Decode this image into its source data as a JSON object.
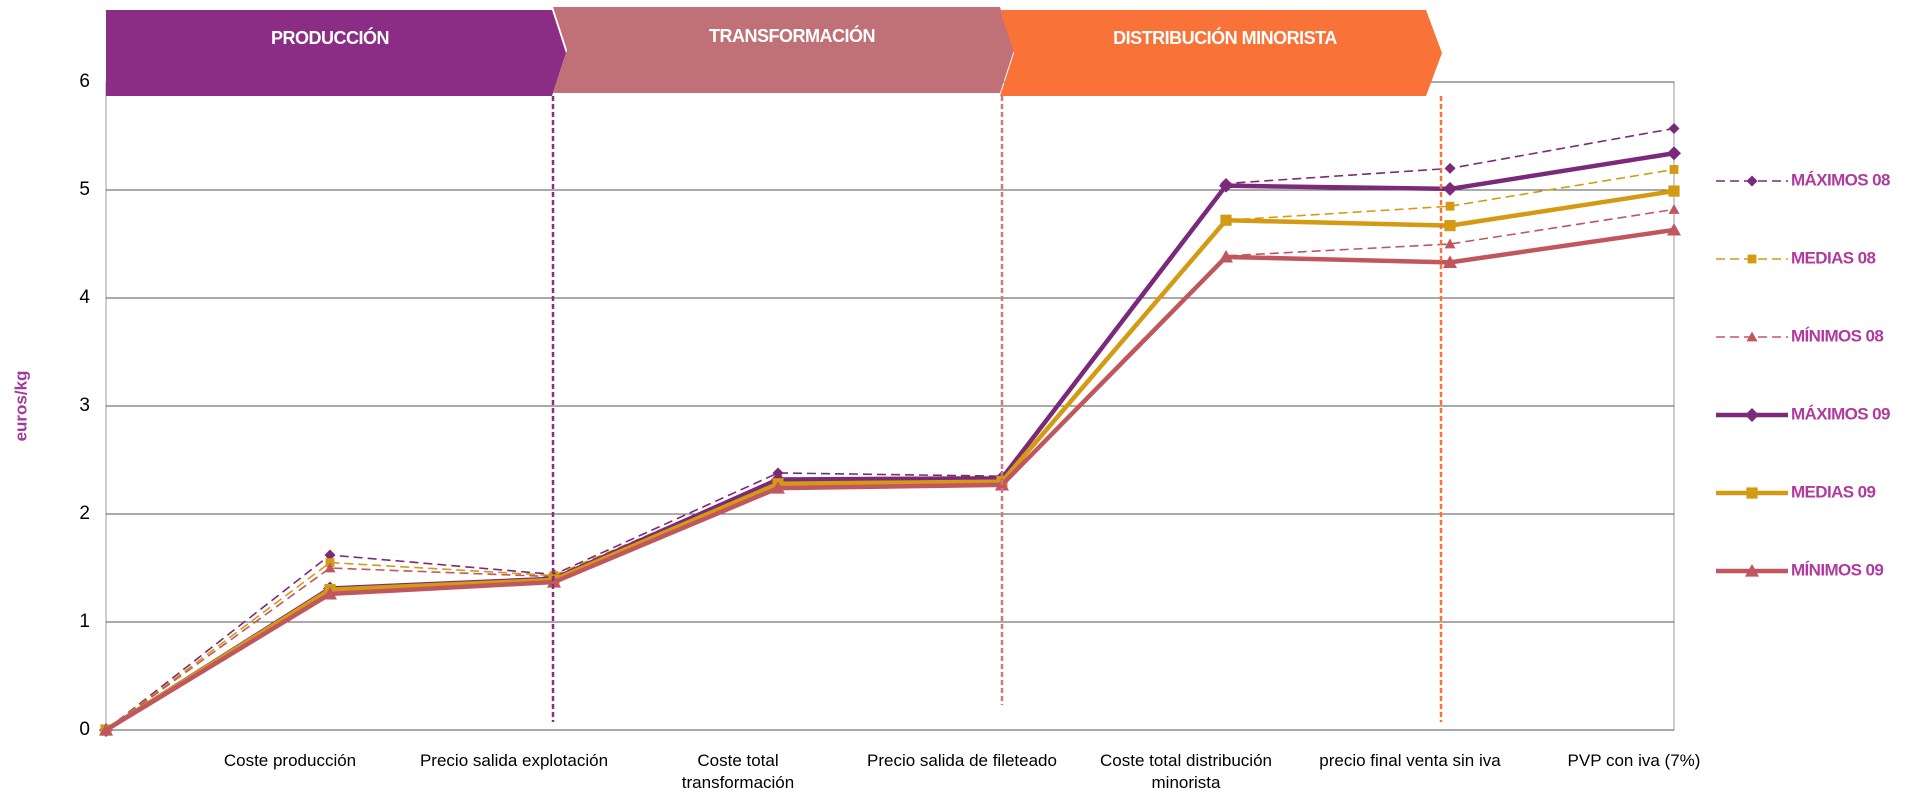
{
  "chart_data": {
    "type": "line",
    "y_label": "euros/kg",
    "stages": [
      "PRODUCCIÓN",
      "TRANSFORMACIÓN",
      "DISTRIBUCIÓN MINORISTA"
    ],
    "categories": [
      null,
      "Coste producción",
      "Precio salida explotación",
      "Coste total\ntransformación",
      "Precio salida de fileteado",
      "Coste total distribución\nminorista",
      "precio final venta sin iva",
      "PVP con iva (7%)"
    ],
    "ylim": [
      0,
      6
    ],
    "yticks": [
      0,
      1,
      2,
      3,
      4,
      5,
      6
    ],
    "grid": true,
    "series": [
      {
        "name": "MÁXIMOS 08",
        "color": "#7b2a7a",
        "marker": "diamond",
        "dashed": true,
        "values": [
          0,
          1.62,
          1.44,
          2.38,
          2.35,
          5.06,
          5.2,
          5.57
        ]
      },
      {
        "name": "MEDIAS  08",
        "color": "#d39a12",
        "marker": "square",
        "dashed": true,
        "values": [
          0,
          1.55,
          1.43,
          2.32,
          2.31,
          4.72,
          4.85,
          5.19
        ]
      },
      {
        "name": "MÍNIMOS 08",
        "color": "#c0575e",
        "marker": "triangle",
        "dashed": true,
        "values": [
          0,
          1.5,
          1.42,
          2.27,
          2.28,
          4.39,
          4.5,
          4.82
        ]
      },
      {
        "name": "MÁXIMOS 09",
        "color": "#7b2a7a",
        "marker": "diamond",
        "dashed": false,
        "values": [
          0,
          1.31,
          1.4,
          2.32,
          2.33,
          5.04,
          5.01,
          5.34
        ]
      },
      {
        "name": "MEDIAS  09",
        "color": "#d39a12",
        "marker": "square",
        "dashed": false,
        "values": [
          0,
          1.3,
          1.39,
          2.28,
          2.3,
          4.72,
          4.67,
          4.99
        ]
      },
      {
        "name": "MÍNIMOS 09",
        "color": "#c0575e",
        "marker": "triangle",
        "dashed": false,
        "values": [
          0,
          1.26,
          1.37,
          2.24,
          2.27,
          4.38,
          4.33,
          4.63
        ]
      }
    ]
  }
}
